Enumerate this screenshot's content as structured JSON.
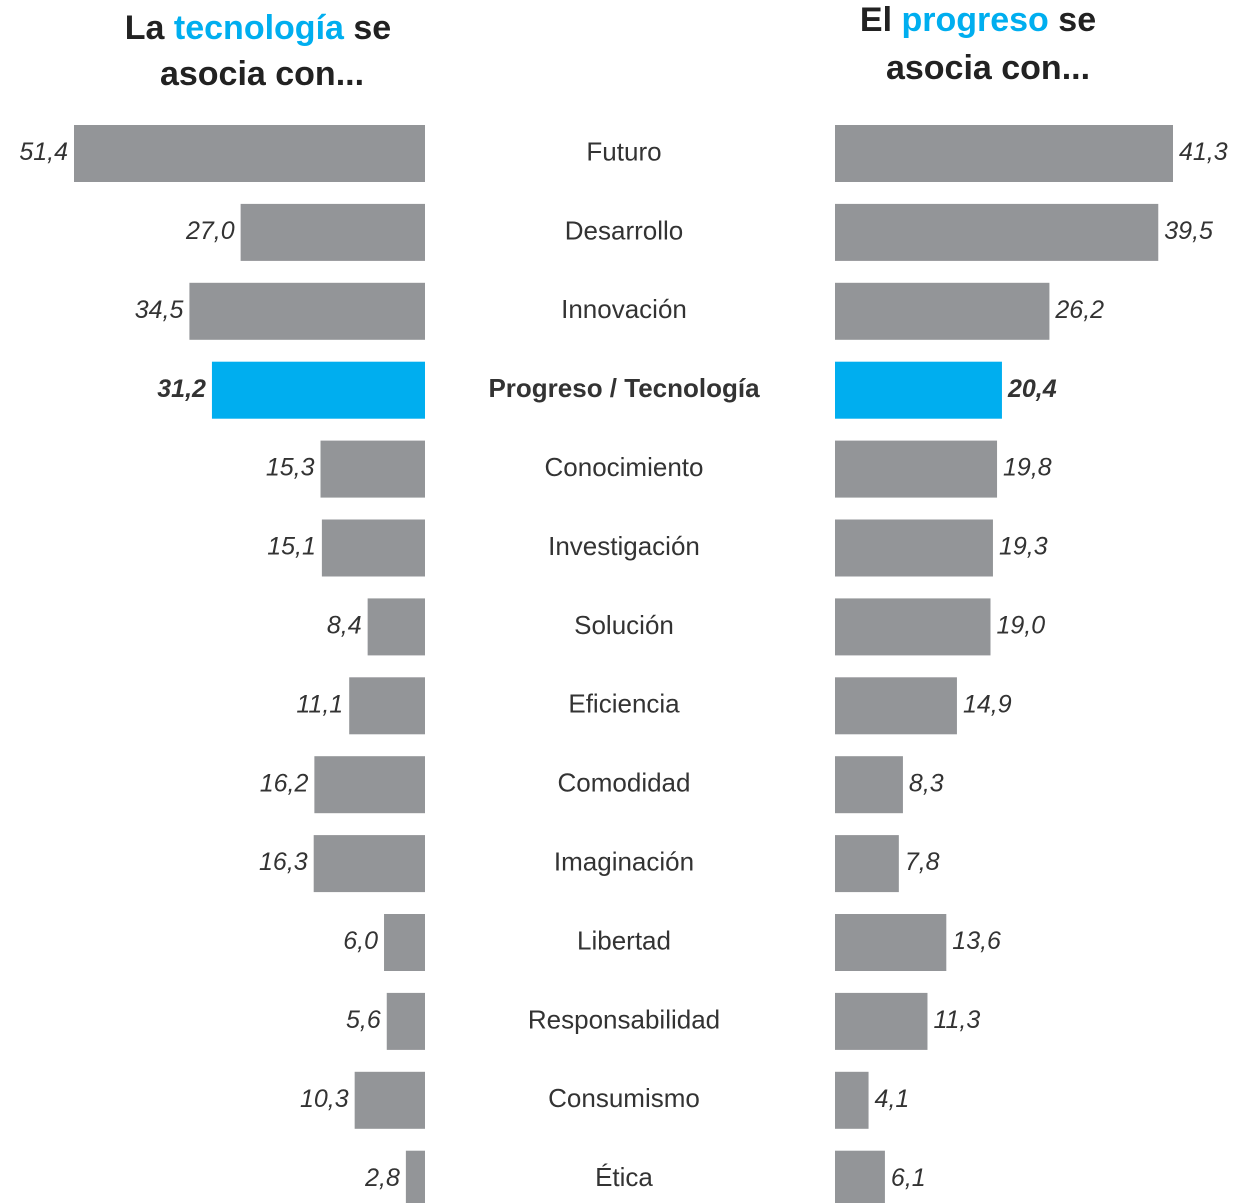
{
  "chart_data": {
    "type": "butterfly_bar",
    "color": "#939598",
    "highlight_color": "#00aeef",
    "highlight": "Progreso / Tecnología",
    "categories": [
      "Futuro",
      "Desarrollo",
      "Innovación",
      "Progreso / Tecnología",
      "Conocimiento",
      "Investigación",
      "Solución",
      "Eficiencia",
      "Comodidad",
      "Imaginación",
      "Libertad",
      "Responsabilidad",
      "Consumismo",
      "Ética"
    ],
    "series": [
      {
        "name": [
          "La",
          "tecnología",
          "se",
          "asocia con..."
        ],
        "values": [
          51.4,
          27.0,
          34.5,
          31.2,
          15.3,
          15.1,
          8.4,
          11.1,
          16.2,
          16.3,
          6.0,
          5.6,
          10.3,
          2.8
        ],
        "value_labels": [
          "51,4",
          "27,0",
          "34,5",
          "31,2",
          "15,3",
          "15,1",
          "8,4",
          "11,1",
          "16,2",
          "16,3",
          "6,0",
          "5,6",
          "10,3",
          "2,8"
        ]
      },
      {
        "name": [
          "El",
          "progreso",
          "se",
          "asocia con..."
        ],
        "values": [
          41.3,
          39.5,
          26.2,
          20.4,
          19.8,
          19.3,
          19.0,
          14.9,
          8.3,
          7.8,
          13.6,
          11.3,
          4.1,
          6.1
        ],
        "value_labels": [
          "41,3",
          "39,5",
          "26,2",
          "20,4",
          "19,8",
          "19,3",
          "19,0",
          "14,9",
          "8,3",
          "7,8",
          "13,6",
          "11,3",
          "4,1",
          "6,1"
        ]
      }
    ]
  }
}
